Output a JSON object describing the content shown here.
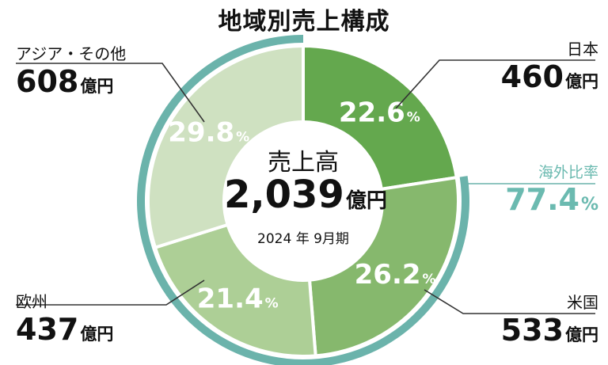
{
  "title": "地域別売上構成",
  "chart_data": {
    "type": "pie",
    "title": "地域別売上構成",
    "unit": "億円",
    "categories": [
      "日本",
      "米国",
      "欧州",
      "アジア・その他"
    ],
    "values": [
      460,
      533,
      437,
      608
    ],
    "percentages": [
      "22.6",
      "26.2",
      "21.4",
      "29.8"
    ],
    "percent_sign": "%",
    "center": {
      "label": "売上高",
      "total": "2,039",
      "unit": "億円",
      "period": "2024 年 9月期"
    },
    "overseas_ratio": {
      "label": "海外比率",
      "value": "77.4",
      "unit": "%"
    },
    "colors": [
      "#64a84e",
      "#86b86d",
      "#adcf96",
      "#cfe1c1"
    ],
    "outer_ring_color": "#6bb3ab"
  },
  "regions": {
    "japan": {
      "name": "日本",
      "amount": "460",
      "unit": "億円"
    },
    "usa": {
      "name": "米国",
      "amount": "533",
      "unit": "億円"
    },
    "europe": {
      "name": "欧州",
      "amount": "437",
      "unit": "億円"
    },
    "asia": {
      "name": "アジア・その他",
      "amount": "608",
      "unit": "億円"
    }
  }
}
